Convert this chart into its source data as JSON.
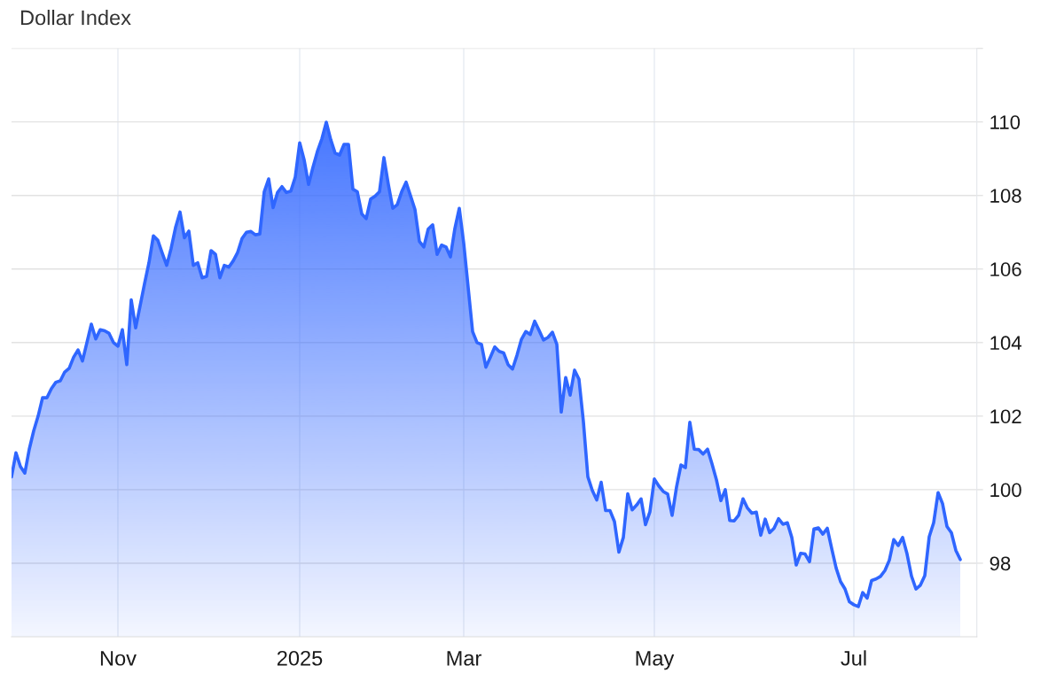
{
  "chart_data": {
    "type": "area",
    "title": "Dollar Index",
    "categories": [
      null,
      null,
      null,
      null,
      null,
      null,
      null,
      null,
      null,
      null,
      null,
      null,
      null,
      null,
      null,
      null,
      null,
      null,
      null,
      null,
      null,
      null,
      null,
      null,
      "Nov",
      null,
      null,
      null,
      null,
      null,
      null,
      null,
      null,
      null,
      null,
      null,
      null,
      null,
      null,
      null,
      null,
      null,
      null,
      null,
      null,
      null,
      null,
      null,
      null,
      null,
      null,
      null,
      null,
      null,
      null,
      null,
      null,
      null,
      null,
      null,
      null,
      null,
      null,
      null,
      null,
      "2025",
      null,
      null,
      null,
      null,
      null,
      null,
      null,
      null,
      null,
      null,
      null,
      null,
      null,
      null,
      null,
      null,
      null,
      null,
      null,
      null,
      null,
      null,
      null,
      null,
      null,
      null,
      null,
      null,
      null,
      null,
      null,
      null,
      null,
      null,
      null,
      null,
      "Mar",
      null,
      null,
      null,
      null,
      null,
      null,
      null,
      null,
      null,
      null,
      null,
      null,
      null,
      null,
      null,
      null,
      null,
      null,
      null,
      null,
      null,
      null,
      null,
      null,
      null,
      null,
      null,
      null,
      null,
      null,
      null,
      null,
      null,
      null,
      null,
      null,
      null,
      null,
      null,
      null,
      null,
      null,
      "May",
      null,
      null,
      null,
      null,
      null,
      null,
      null,
      null,
      null,
      null,
      null,
      null,
      null,
      null,
      null,
      null,
      null,
      null,
      null,
      null,
      null,
      null,
      null,
      null,
      null,
      null,
      null,
      null,
      null,
      null,
      null,
      null,
      null,
      null,
      null,
      null,
      null,
      null,
      null,
      null,
      null,
      null,
      null,
      null,
      "Jul",
      null,
      null,
      null,
      null,
      null,
      null,
      null,
      null,
      null,
      null,
      null,
      null,
      null,
      null,
      null,
      null,
      null,
      null,
      null,
      null,
      null,
      null,
      null,
      null
    ],
    "series": [
      {
        "color": "#2f66ff",
        "values": [
          100.35,
          101.0,
          100.63,
          100.45,
          101.1,
          101.6,
          102.0,
          102.5,
          102.5,
          102.75,
          102.92,
          102.96,
          103.2,
          103.3,
          103.6,
          103.8,
          103.5,
          104.0,
          104.5,
          104.1,
          104.35,
          104.32,
          104.25,
          104.0,
          103.9,
          104.35,
          103.4,
          105.16,
          104.4,
          105.0,
          105.6,
          106.17,
          106.9,
          106.78,
          106.43,
          106.1,
          106.56,
          107.13,
          107.55,
          106.85,
          107.03,
          106.1,
          106.17,
          105.76,
          105.8,
          106.5,
          106.4,
          105.76,
          106.1,
          106.05,
          106.22,
          106.45,
          106.83,
          107.0,
          107.02,
          106.93,
          106.95,
          108.1,
          108.45,
          107.67,
          108.08,
          108.24,
          108.08,
          108.12,
          108.5,
          109.43,
          108.97,
          108.3,
          108.77,
          109.2,
          109.54,
          109.99,
          109.52,
          109.15,
          109.1,
          109.39,
          109.39,
          108.17,
          108.1,
          107.5,
          107.37,
          107.9,
          107.98,
          108.1,
          109.03,
          108.3,
          107.65,
          107.75,
          108.1,
          108.36,
          107.99,
          107.62,
          106.75,
          106.6,
          107.09,
          107.2,
          106.4,
          106.65,
          106.6,
          106.33,
          107.1,
          107.65,
          106.7,
          105.5,
          104.3,
          104.0,
          103.95,
          103.33,
          103.6,
          103.88,
          103.76,
          103.72,
          103.4,
          103.28,
          103.65,
          104.08,
          104.3,
          104.22,
          104.58,
          104.33,
          104.07,
          104.14,
          104.28,
          103.95,
          102.11,
          103.05,
          102.57,
          103.25,
          103.0,
          101.84,
          100.35,
          99.98,
          99.72,
          100.2,
          99.43,
          99.43,
          99.13,
          98.3,
          98.7,
          99.89,
          99.45,
          99.58,
          99.75,
          99.05,
          99.4,
          100.29,
          100.1,
          99.95,
          99.88,
          99.3,
          100.07,
          100.67,
          100.6,
          101.83,
          101.1,
          101.09,
          100.97,
          101.1,
          100.7,
          100.27,
          99.7,
          100.0,
          99.16,
          99.15,
          99.3,
          99.75,
          99.5,
          99.36,
          99.39,
          98.76,
          99.2,
          98.83,
          98.95,
          99.21,
          99.06,
          99.1,
          98.7,
          97.95,
          98.27,
          98.25,
          98.04,
          98.93,
          98.96,
          98.79,
          98.95,
          98.4,
          97.87,
          97.5,
          97.3,
          96.95,
          96.87,
          96.82,
          97.2,
          97.05,
          97.53,
          97.57,
          97.64,
          97.8,
          98.08,
          98.64,
          98.48,
          98.7,
          98.25,
          97.65,
          97.3,
          97.4,
          97.66,
          98.72,
          99.1,
          99.92,
          99.62,
          99.0,
          98.83,
          98.35,
          98.1
        ]
      }
    ],
    "ylim": [
      96,
      112
    ],
    "yticks": [
      98,
      100,
      102,
      104,
      106,
      108,
      110,
      {
        "value": 112,
        "label": null
      }
    ],
    "grid": true
  }
}
